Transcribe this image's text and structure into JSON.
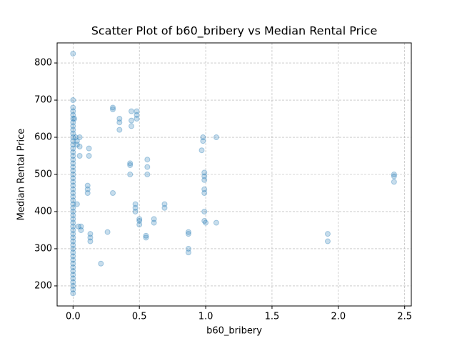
{
  "chart_data": {
    "type": "scatter",
    "title": "Scatter Plot of b60_bribery vs Median Rental Price",
    "x_label": "b60_bribery",
    "y_label": "Median Rental Price",
    "color": "#1f77b4",
    "alpha": 0.25,
    "grid": true,
    "xlim": [
      -0.12,
      2.55
    ],
    "ylim": [
      146,
      854
    ],
    "xticks": [
      {
        "value": 0,
        "label": "0.0"
      },
      {
        "value": 0.5,
        "label": "0.5"
      },
      {
        "value": 1,
        "label": "1.0"
      },
      {
        "value": 1.5,
        "label": "1.5"
      },
      {
        "value": 2,
        "label": "2.0"
      },
      {
        "value": 2.5,
        "label": "2.5"
      }
    ],
    "yticks": [
      200,
      300,
      400,
      500,
      600,
      700,
      800
    ],
    "x": [
      0,
      0,
      0,
      0,
      0,
      0,
      0,
      0,
      0,
      0,
      0,
      0,
      0,
      0,
      0,
      0,
      0,
      0,
      0,
      0,
      0,
      0,
      0,
      0,
      0,
      0,
      0,
      0,
      0,
      0,
      0,
      0,
      0,
      0,
      0,
      0,
      0,
      0,
      0,
      0,
      0,
      0,
      0,
      0,
      0,
      0,
      0,
      0,
      0,
      0,
      0,
      0,
      0,
      0.01,
      0.02,
      0.03,
      0.03,
      0.05,
      0.05,
      0.05,
      0.03,
      0.04,
      0.06,
      0.06,
      0.12,
      0.12,
      0.11,
      0.11,
      0.11,
      0.13,
      0.13,
      0.13,
      0.21,
      0.26,
      0.3,
      0.3,
      0.3,
      0.35,
      0.35,
      0.35,
      0.43,
      0.43,
      0.43,
      0.44,
      0.44,
      0.44,
      0.48,
      0.48,
      0.48,
      0.47,
      0.47,
      0.47,
      0.5,
      0.5,
      0.5,
      0.55,
      0.55,
      0.56,
      0.56,
      0.56,
      0.61,
      0.61,
      0.69,
      0.69,
      0.87,
      0.87,
      0.87,
      0.87,
      0.98,
      0.98,
      0.97,
      0.99,
      0.99,
      0.99,
      0.99,
      0.99,
      0.99,
      0.99,
      1,
      1.08,
      1.08,
      1.92,
      1.92,
      2.42,
      2.42,
      2.42
    ],
    "y": [
      825,
      700,
      680,
      670,
      660,
      650,
      640,
      630,
      620,
      610,
      600,
      590,
      580,
      570,
      560,
      550,
      540,
      530,
      520,
      510,
      500,
      490,
      480,
      470,
      460,
      450,
      440,
      430,
      420,
      410,
      400,
      390,
      380,
      370,
      360,
      350,
      340,
      330,
      320,
      310,
      300,
      290,
      280,
      270,
      260,
      250,
      240,
      230,
      220,
      210,
      200,
      190,
      180,
      650,
      600,
      590,
      580,
      600,
      575,
      550,
      420,
      360,
      360,
      350,
      570,
      550,
      470,
      460,
      450,
      340,
      330,
      320,
      260,
      345,
      680,
      675,
      450,
      650,
      640,
      620,
      530,
      525,
      500,
      670,
      645,
      630,
      670,
      660,
      650,
      420,
      410,
      400,
      380,
      375,
      365,
      335,
      330,
      540,
      520,
      500,
      380,
      370,
      420,
      410,
      345,
      340,
      300,
      290,
      600,
      590,
      565,
      505,
      495,
      485,
      460,
      450,
      400,
      375,
      370,
      600,
      370,
      340,
      320,
      500,
      495,
      480
    ]
  }
}
